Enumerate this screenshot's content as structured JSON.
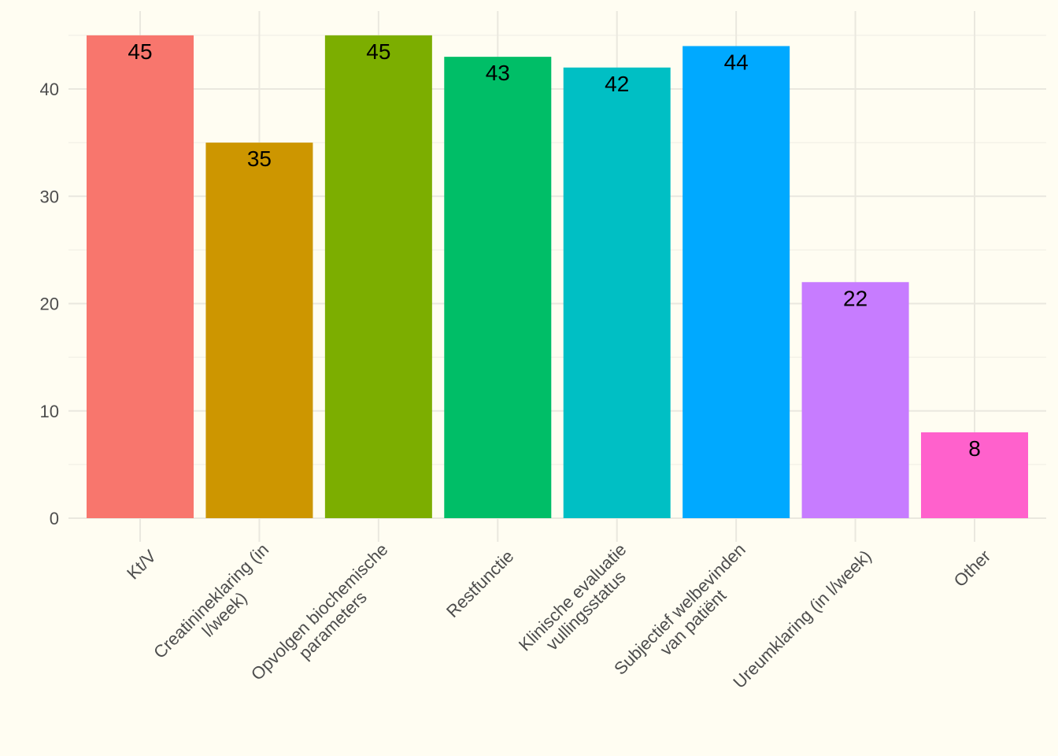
{
  "chart_data": {
    "type": "bar",
    "title": "",
    "xlabel": "",
    "ylabel": "",
    "categories": [
      "Kt/V",
      "Creatinineklaring (in l/week)",
      "Opvolgen biochemische parameters",
      "Restfunctie",
      "Klinische evaluatie vullingsstatus",
      "Subjectief welbevinden van patiënt",
      "Ureumklaring (in l/week)",
      "Other"
    ],
    "category_lines": [
      [
        "Kt/V"
      ],
      [
        "Creatinineklaring (in",
        "l/week)"
      ],
      [
        "Opvolgen biochemische",
        "parameters"
      ],
      [
        "Restfunctie"
      ],
      [
        "Klinische evaluatie",
        "vullingsstatus"
      ],
      [
        "Subjectief welbevinden",
        "van patiënt"
      ],
      [
        "Ureumklaring (in l/week)"
      ],
      [
        "Other"
      ]
    ],
    "values": [
      45,
      35,
      45,
      43,
      42,
      44,
      22,
      8
    ],
    "data_labels": [
      "45",
      "35",
      "45",
      "43",
      "42",
      "44",
      "22",
      "8"
    ],
    "colors": [
      "#F8766D",
      "#CD9600",
      "#7CAE00",
      "#00BE67",
      "#00BFC4",
      "#00A9FF",
      "#C77CFF",
      "#FF61CC"
    ],
    "ylim": [
      0,
      47.25
    ],
    "yticks": [
      0,
      10,
      20,
      30,
      40
    ],
    "ytick_labels": [
      "0",
      "10",
      "20",
      "30",
      "40"
    ],
    "yminor": [
      5,
      15,
      25,
      35,
      45
    ],
    "grid": true,
    "legend": "none",
    "background": "#FFFDF2"
  }
}
